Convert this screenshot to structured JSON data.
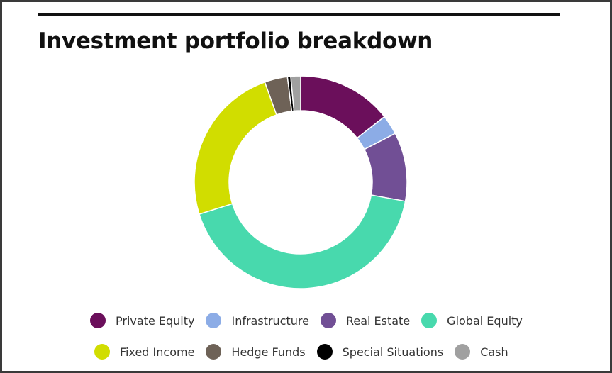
{
  "title": "Investment portfolio breakdown",
  "colors": {
    "Private Equity": "#6b0f5b",
    "Infrastructure": "#8cace6",
    "Real Estate": "#714f95",
    "Global Equity": "#48d9ad",
    "Fixed Income": "#d1dd00",
    "Hedge Funds": "#6e6257",
    "Special Situations": "#000000",
    "Cash": "#a0a0a0"
  },
  "chart_data": {
    "type": "pie",
    "donut": true,
    "legend_position": "bottom",
    "labels": [
      "Private Equity",
      "Infrastructure",
      "Real Estate",
      "Global Equity",
      "Fixed Income",
      "Hedge Funds",
      "Special Situations",
      "Cash"
    ],
    "values": [
      14.5,
      3.0,
      10.5,
      42.5,
      24.5,
      3.5,
      0.5,
      1.5
    ]
  }
}
